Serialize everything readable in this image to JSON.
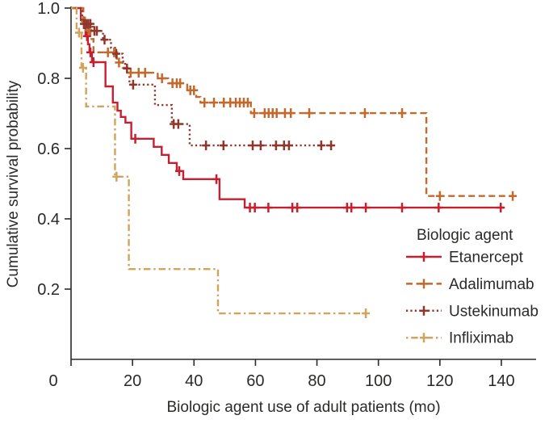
{
  "figure": {
    "background": "#ffffff",
    "axis_color": "#2b2a29",
    "text_color": "#2b2a29"
  },
  "chart_data": {
    "type": "line",
    "subtype": "kaplan-meier-step-survival",
    "title": "",
    "xlabel": "Biologic agent use of adult patients (mo)",
    "ylabel": "Cumulative survival probability",
    "xlim": [
      0,
      151
    ],
    "ylim": [
      0,
      1.0
    ],
    "x_ticks": [
      0,
      20,
      40,
      60,
      80,
      100,
      120,
      140
    ],
    "y_ticks": [
      1.0,
      0.8,
      0.6,
      0.4,
      0.2
    ],
    "grid": false,
    "legend": {
      "title": "Biologic agent",
      "position": "lower right"
    },
    "series": [
      {
        "name": "Etanercept",
        "color": "#c52030",
        "line_style": "solid",
        "start": [
          0,
          1.0
        ],
        "end_x": 140.8,
        "steps": [
          [
            3.2,
            0.966
          ],
          [
            4.2,
            0.943
          ],
          [
            4.7,
            0.92
          ],
          [
            5.5,
            0.897
          ],
          [
            6.0,
            0.874
          ],
          [
            6.8,
            0.846
          ],
          [
            11.2,
            0.777
          ],
          [
            13.6,
            0.731
          ],
          [
            15.1,
            0.708
          ],
          [
            16.2,
            0.69
          ],
          [
            17.7,
            0.674
          ],
          [
            19.6,
            0.628
          ],
          [
            26.9,
            0.605
          ],
          [
            29.5,
            0.582
          ],
          [
            31.8,
            0.559
          ],
          [
            34.4,
            0.536
          ],
          [
            36.5,
            0.513
          ],
          [
            48.3,
            0.456
          ],
          [
            56.5,
            0.432
          ]
        ],
        "censor_marks": [
          [
            5.2,
            0.92
          ],
          [
            6.3,
            0.874
          ],
          [
            7.3,
            0.846
          ],
          [
            20.9,
            0.628
          ],
          [
            35.2,
            0.536
          ],
          [
            47.3,
            0.513
          ],
          [
            58.2,
            0.432
          ],
          [
            59.8,
            0.432
          ],
          [
            64.2,
            0.432
          ],
          [
            72.0,
            0.432
          ],
          [
            73.6,
            0.432
          ],
          [
            89.8,
            0.432
          ],
          [
            91.2,
            0.432
          ],
          [
            95.9,
            0.432
          ],
          [
            107.7,
            0.432
          ],
          [
            119.6,
            0.432
          ],
          [
            139.8,
            0.432
          ]
        ]
      },
      {
        "name": "Adalimumab",
        "color": "#c2692e",
        "line_style": "dashed",
        "start": [
          0,
          1.0
        ],
        "end_x": 144.0,
        "steps": [
          [
            4.0,
            0.962
          ],
          [
            5.2,
            0.937
          ],
          [
            6.3,
            0.912
          ],
          [
            7.3,
            0.874
          ],
          [
            14.9,
            0.845
          ],
          [
            16.8,
            0.83
          ],
          [
            18.3,
            0.816
          ],
          [
            28.2,
            0.8
          ],
          [
            31.6,
            0.786
          ],
          [
            37.8,
            0.766
          ],
          [
            40.7,
            0.747
          ],
          [
            42.1,
            0.731
          ],
          [
            58.5,
            0.701
          ],
          [
            115.6,
            0.465
          ]
        ],
        "censor_marks": [
          [
            4.5,
            0.962
          ],
          [
            5.7,
            0.937
          ],
          [
            12.0,
            0.874
          ],
          [
            14.0,
            0.874
          ],
          [
            15.6,
            0.845
          ],
          [
            19.4,
            0.816
          ],
          [
            22.0,
            0.816
          ],
          [
            24.1,
            0.816
          ],
          [
            29.6,
            0.8
          ],
          [
            33.0,
            0.786
          ],
          [
            34.4,
            0.786
          ],
          [
            35.5,
            0.786
          ],
          [
            38.8,
            0.766
          ],
          [
            40.0,
            0.766
          ],
          [
            43.4,
            0.731
          ],
          [
            46.5,
            0.731
          ],
          [
            49.7,
            0.731
          ],
          [
            51.8,
            0.731
          ],
          [
            53.6,
            0.731
          ],
          [
            54.9,
            0.731
          ],
          [
            56.2,
            0.731
          ],
          [
            57.5,
            0.731
          ],
          [
            59.6,
            0.701
          ],
          [
            63.0,
            0.701
          ],
          [
            64.3,
            0.701
          ],
          [
            65.6,
            0.701
          ],
          [
            66.9,
            0.701
          ],
          [
            69.6,
            0.701
          ],
          [
            71.5,
            0.701
          ],
          [
            77.5,
            0.701
          ],
          [
            95.6,
            0.701
          ],
          [
            107.7,
            0.701
          ],
          [
            120.0,
            0.465
          ],
          [
            143.7,
            0.465
          ]
        ]
      },
      {
        "name": "Ustekinumab",
        "color": "#8f372c",
        "line_style": "dotted",
        "start": [
          0,
          1.0
        ],
        "end_x": 85.5,
        "steps": [
          [
            3.6,
            0.955
          ],
          [
            7.0,
            0.935
          ],
          [
            10.4,
            0.91
          ],
          [
            13.0,
            0.887
          ],
          [
            14.3,
            0.87
          ],
          [
            16.8,
            0.848
          ],
          [
            17.6,
            0.828
          ],
          [
            19.0,
            0.782
          ],
          [
            27.3,
            0.724
          ],
          [
            32.8,
            0.67
          ],
          [
            38.6,
            0.609
          ]
        ],
        "censor_marks": [
          [
            4.2,
            0.955
          ],
          [
            4.9,
            0.955
          ],
          [
            5.6,
            0.955
          ],
          [
            6.3,
            0.955
          ],
          [
            7.6,
            0.935
          ],
          [
            8.4,
            0.935
          ],
          [
            10.9,
            0.91
          ],
          [
            14.7,
            0.87
          ],
          [
            18.2,
            0.828
          ],
          [
            20.2,
            0.782
          ],
          [
            33.4,
            0.67
          ],
          [
            34.9,
            0.67
          ],
          [
            43.9,
            0.609
          ],
          [
            49.6,
            0.609
          ],
          [
            59.1,
            0.609
          ],
          [
            61.7,
            0.609
          ],
          [
            66.7,
            0.609
          ],
          [
            69.3,
            0.609
          ],
          [
            70.9,
            0.609
          ],
          [
            81.4,
            0.609
          ],
          [
            84.6,
            0.609
          ]
        ]
      },
      {
        "name": "Infliximab",
        "color": "#d2a35c",
        "line_style": "dashdot",
        "start": [
          0,
          1.0
        ],
        "end_x": 96.3,
        "steps": [
          [
            1.8,
            0.93
          ],
          [
            3.4,
            0.83
          ],
          [
            4.9,
            0.72
          ],
          [
            14.3,
            0.52
          ],
          [
            18.8,
            0.257
          ],
          [
            47.8,
            0.131
          ]
        ],
        "censor_marks": [
          [
            2.6,
            0.93
          ],
          [
            3.9,
            0.83
          ],
          [
            14.8,
            0.52
          ],
          [
            95.9,
            0.131
          ]
        ]
      }
    ]
  }
}
